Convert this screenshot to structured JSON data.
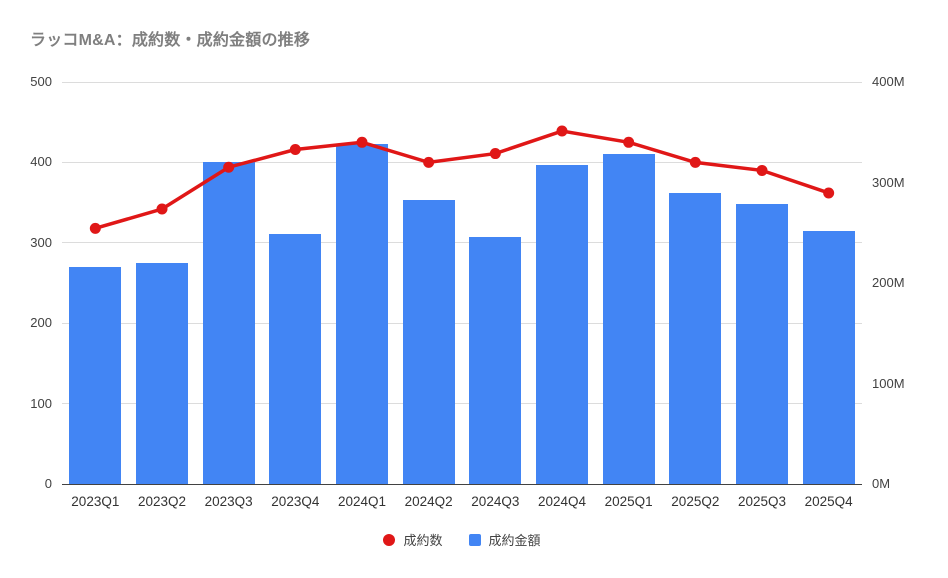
{
  "title": "ラッコM&A：成約数・成約金額の推移",
  "colors": {
    "bar": "#4285f4",
    "line": "#e01717",
    "grid": "#dcdcdc",
    "baseline": "#424242",
    "axis_text": "#424242",
    "title_text": "#7f7f7f",
    "background": "#ffffff"
  },
  "legend": {
    "items": [
      {
        "label": "成約数",
        "marker": "circle",
        "color": "#e01717"
      },
      {
        "label": "成約金額",
        "marker": "square",
        "color": "#4285f4"
      }
    ]
  },
  "chart_data": {
    "type": "combo (bar + line)",
    "title": "ラッコM&A：成約数・成約金額の推移",
    "categories": [
      "2023Q1",
      "2023Q2",
      "2023Q3",
      "2023Q4",
      "2024Q1",
      "2024Q2",
      "2024Q3",
      "2024Q4",
      "2025Q1",
      "2025Q2",
      "2025Q3",
      "2025Q4"
    ],
    "series": [
      {
        "name": "成約数",
        "type": "line",
        "axis": "left",
        "color": "#e01717",
        "values": [
          318,
          342,
          394,
          416,
          425,
          400,
          411,
          439,
          425,
          400,
          390,
          362
        ]
      },
      {
        "name": "成約金額",
        "type": "bar",
        "axis": "right",
        "unit": "M",
        "color": "#4285f4",
        "values": [
          216,
          220,
          320,
          249,
          338,
          283,
          246,
          317,
          328,
          290,
          279,
          252
        ]
      }
    ],
    "left_axis": {
      "min": 0,
      "max": 500,
      "tick_values": [
        0,
        100,
        200,
        300,
        400,
        500
      ],
      "tick_labels": [
        "0",
        "100",
        "200",
        "300",
        "400",
        "500"
      ]
    },
    "right_axis": {
      "min": 0,
      "max": 400,
      "tick_values": [
        0,
        100,
        200,
        300,
        400
      ],
      "tick_labels": [
        "0M",
        "100M",
        "200M",
        "300M",
        "400M"
      ]
    },
    "grid": true,
    "legend_position": "bottom",
    "xlabel": "",
    "ylabel_left": "",
    "ylabel_right": ""
  }
}
